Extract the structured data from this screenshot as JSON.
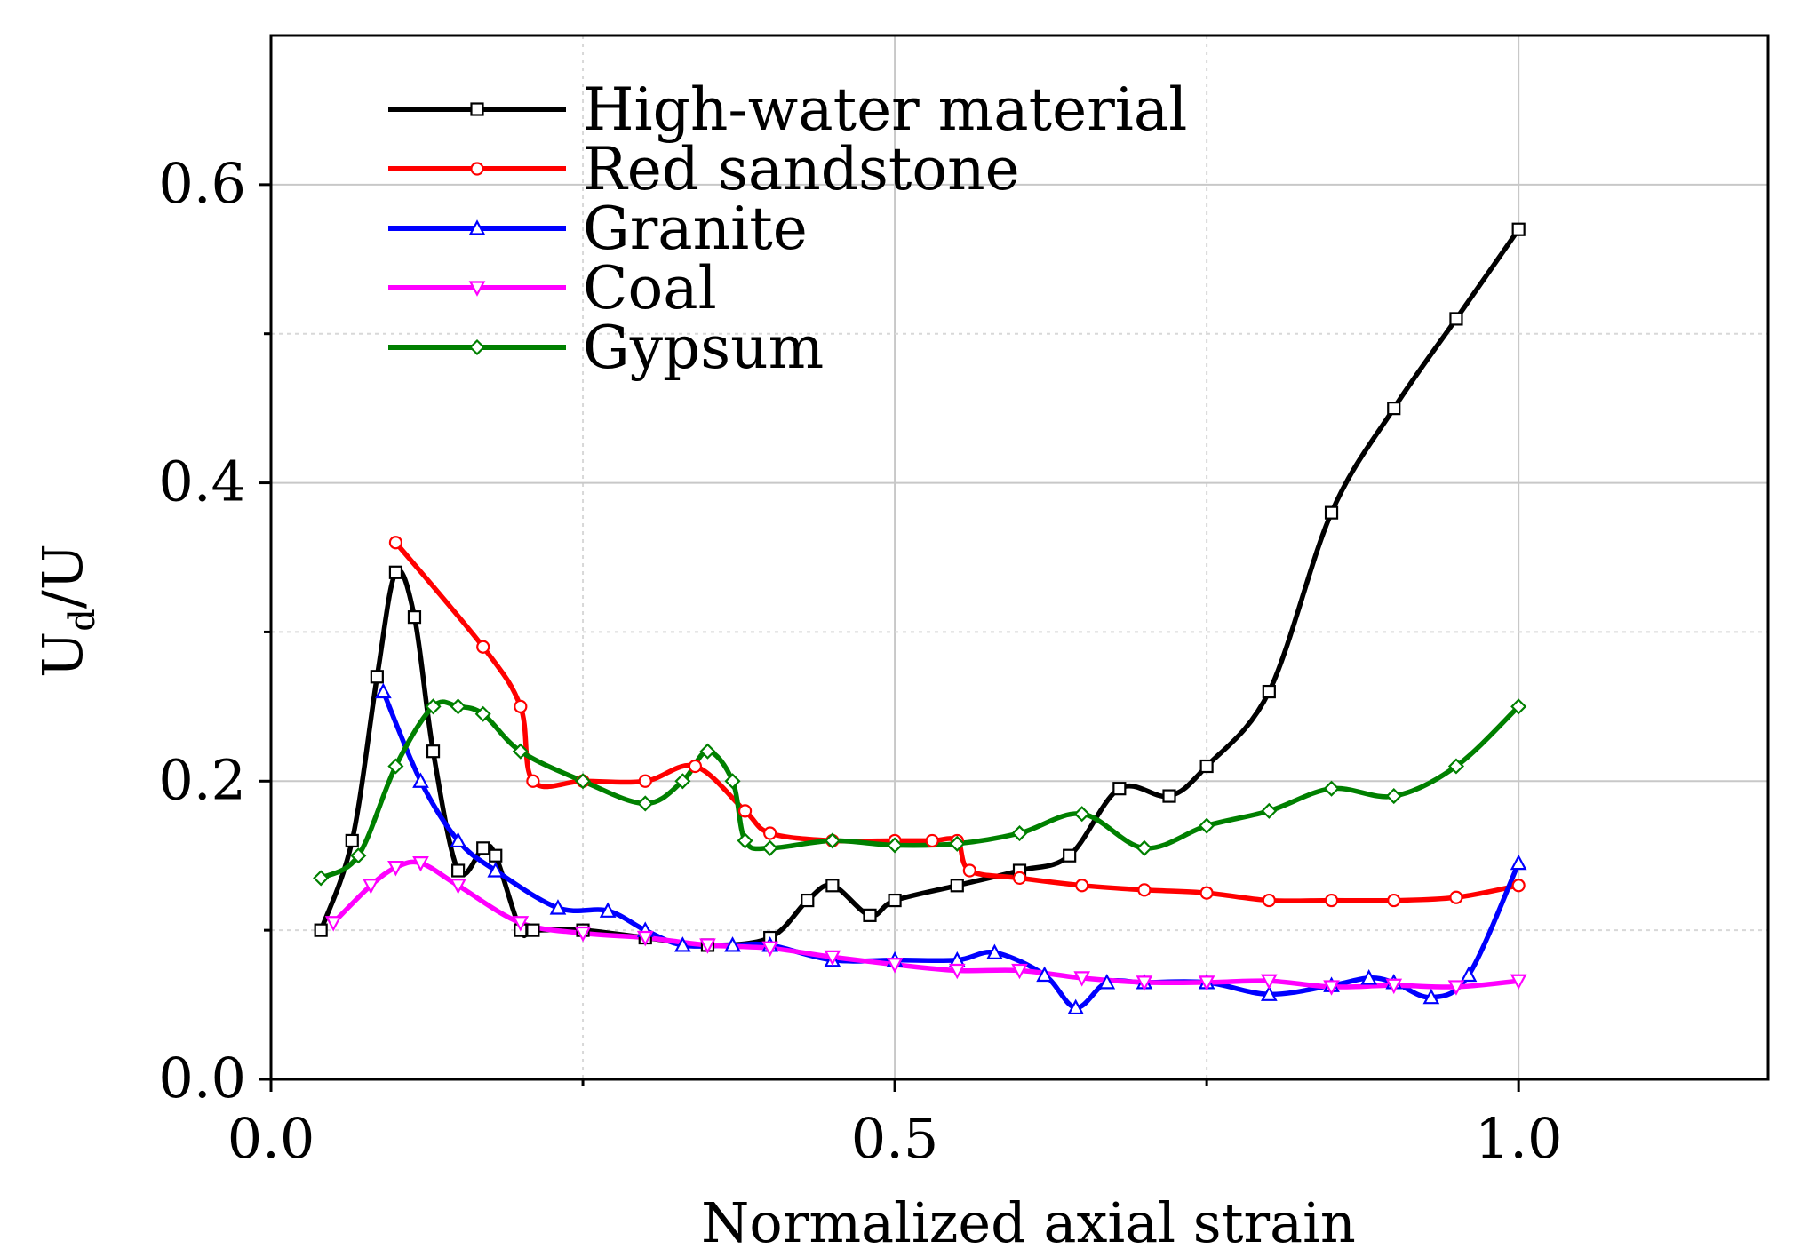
{
  "chart_data": {
    "type": "line",
    "title": "",
    "xlabel": "Normalized axial strain",
    "ylabel": {
      "main": "U",
      "sub": "d",
      "suffix": "/U"
    },
    "xlim": [
      0.0,
      1.2
    ],
    "ylim": [
      0.0,
      0.7
    ],
    "xticks": [
      {
        "value": 0.0,
        "label": "0.0"
      },
      {
        "value": 0.5,
        "label": "0.5"
      },
      {
        "value": 1.0,
        "label": "1.0"
      }
    ],
    "yticks": [
      {
        "value": 0.0,
        "label": "0.0"
      },
      {
        "value": 0.2,
        "label": "0.2"
      },
      {
        "value": 0.4,
        "label": "0.4"
      },
      {
        "value": 0.6,
        "label": "0.6"
      }
    ],
    "grid": true,
    "legend_position": "top-left",
    "series": [
      {
        "name": "High-water material",
        "color": "#000000",
        "marker": "square",
        "x": [
          0.04,
          0.065,
          0.085,
          0.1,
          0.115,
          0.13,
          0.15,
          0.17,
          0.18,
          0.2,
          0.21,
          0.25,
          0.3,
          0.35,
          0.4,
          0.43,
          0.45,
          0.48,
          0.5,
          0.55,
          0.6,
          0.64,
          0.68,
          0.72,
          0.75,
          0.8,
          0.85,
          0.9,
          0.95,
          1.0
        ],
        "y": [
          0.1,
          0.16,
          0.27,
          0.34,
          0.31,
          0.22,
          0.14,
          0.155,
          0.15,
          0.1,
          0.1,
          0.1,
          0.095,
          0.09,
          0.095,
          0.12,
          0.13,
          0.11,
          0.12,
          0.13,
          0.14,
          0.15,
          0.195,
          0.19,
          0.21,
          0.26,
          0.38,
          0.45,
          0.51,
          0.57
        ]
      },
      {
        "name": "Red sandstone",
        "color": "#ff0000",
        "marker": "circle",
        "x": [
          0.1,
          0.17,
          0.2,
          0.21,
          0.25,
          0.3,
          0.34,
          0.38,
          0.4,
          0.45,
          0.5,
          0.53,
          0.55,
          0.56,
          0.6,
          0.65,
          0.7,
          0.75,
          0.8,
          0.85,
          0.9,
          0.95,
          1.0
        ],
        "y": [
          0.36,
          0.29,
          0.25,
          0.2,
          0.2,
          0.2,
          0.21,
          0.18,
          0.165,
          0.16,
          0.16,
          0.16,
          0.16,
          0.14,
          0.135,
          0.13,
          0.127,
          0.125,
          0.12,
          0.12,
          0.12,
          0.122,
          0.13
        ]
      },
      {
        "name": "Granite",
        "color": "#0000ff",
        "marker": "triangle",
        "x": [
          0.09,
          0.12,
          0.15,
          0.18,
          0.23,
          0.27,
          0.3,
          0.33,
          0.37,
          0.4,
          0.45,
          0.5,
          0.55,
          0.58,
          0.62,
          0.645,
          0.67,
          0.7,
          0.75,
          0.8,
          0.85,
          0.88,
          0.9,
          0.93,
          0.96,
          1.0
        ],
        "y": [
          0.26,
          0.2,
          0.16,
          0.14,
          0.115,
          0.113,
          0.1,
          0.09,
          0.09,
          0.09,
          0.08,
          0.08,
          0.08,
          0.085,
          0.07,
          0.048,
          0.065,
          0.065,
          0.065,
          0.057,
          0.063,
          0.068,
          0.065,
          0.055,
          0.07,
          0.145
        ]
      },
      {
        "name": "Coal",
        "color": "#ff00ff",
        "marker": "inverted-triangle",
        "x": [
          0.05,
          0.08,
          0.1,
          0.12,
          0.15,
          0.2,
          0.25,
          0.3,
          0.35,
          0.4,
          0.45,
          0.5,
          0.55,
          0.6,
          0.65,
          0.7,
          0.75,
          0.8,
          0.85,
          0.9,
          0.95,
          1.0
        ],
        "y": [
          0.105,
          0.13,
          0.142,
          0.145,
          0.13,
          0.105,
          0.098,
          0.095,
          0.09,
          0.088,
          0.082,
          0.077,
          0.073,
          0.073,
          0.068,
          0.065,
          0.065,
          0.066,
          0.062,
          0.063,
          0.062,
          0.066
        ]
      },
      {
        "name": "Gypsum",
        "color": "#008000",
        "marker": "diamond",
        "x": [
          0.04,
          0.07,
          0.1,
          0.13,
          0.15,
          0.17,
          0.2,
          0.25,
          0.3,
          0.33,
          0.35,
          0.37,
          0.38,
          0.4,
          0.45,
          0.5,
          0.55,
          0.6,
          0.65,
          0.7,
          0.75,
          0.8,
          0.85,
          0.9,
          0.95,
          1.0
        ],
        "y": [
          0.135,
          0.15,
          0.21,
          0.25,
          0.25,
          0.245,
          0.22,
          0.2,
          0.185,
          0.2,
          0.22,
          0.2,
          0.16,
          0.155,
          0.16,
          0.157,
          0.158,
          0.165,
          0.178,
          0.155,
          0.17,
          0.18,
          0.195,
          0.19,
          0.21,
          0.25
        ]
      }
    ]
  }
}
